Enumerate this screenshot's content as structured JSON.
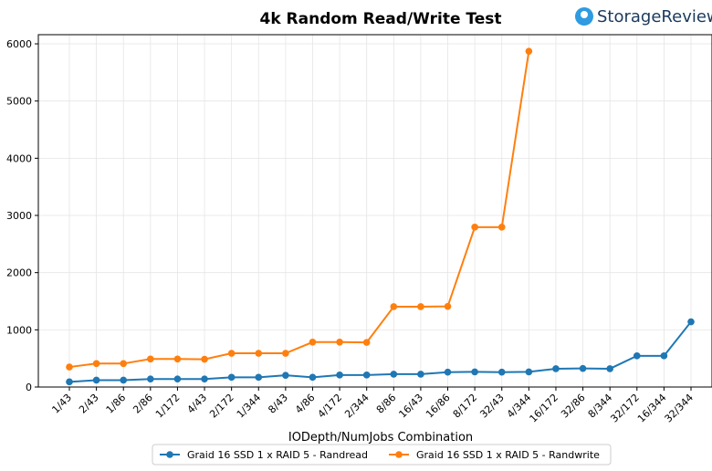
{
  "logo_text": "StorageReview",
  "chart_data": {
    "type": "line",
    "title": "4k Random Read/Write Test",
    "x_label": "IODepth/NumJobs Combination",
    "categories": [
      "1/43",
      "2/43",
      "1/86",
      "2/86",
      "1/172",
      "4/43",
      "2/172",
      "1/344",
      "8/43",
      "4/86",
      "4/172",
      "2/344",
      "8/86",
      "16/43",
      "16/86",
      "8/172",
      "32/43",
      "4/344",
      "16/172",
      "32/86",
      "8/344",
      "32/172",
      "16/344",
      "32/344"
    ],
    "series": [
      {
        "name": "Graid 16 SSD 1 x RAID 5 - Randread",
        "color": "#1f77b4",
        "values": [
          90,
          120,
          120,
          140,
          140,
          140,
          170,
          170,
          205,
          170,
          210,
          210,
          225,
          225,
          260,
          265,
          260,
          265,
          320,
          325,
          320,
          545,
          545,
          1140
        ]
      },
      {
        "name": "Graid 16 SSD 1 x RAID 5 - Randwrite",
        "color": "#ff7f0e",
        "values": [
          350,
          410,
          410,
          490,
          490,
          485,
          590,
          590,
          590,
          785,
          785,
          780,
          1405,
          1405,
          1410,
          2795,
          2795,
          5870,
          null,
          null,
          null,
          null,
          null,
          null
        ]
      }
    ],
    "ylim": [
      0,
      6160
    ],
    "yticks": [
      0,
      1000,
      2000,
      3000,
      4000,
      5000,
      6000
    ],
    "grid": true,
    "legend": "bottom"
  }
}
